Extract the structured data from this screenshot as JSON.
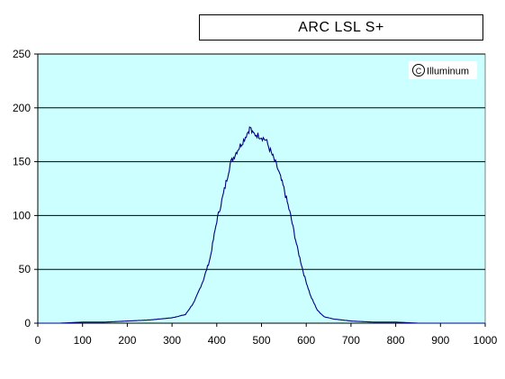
{
  "chart_data": {
    "type": "line",
    "title": "ARC LSL S+",
    "annotation": "Illuminum",
    "annotation_symbol": "©",
    "xlabel": "",
    "ylabel": "",
    "xlim": [
      0,
      1000
    ],
    "ylim": [
      0,
      250
    ],
    "x_ticks": [
      0,
      100,
      200,
      300,
      400,
      500,
      600,
      700,
      800,
      900,
      1000
    ],
    "y_ticks": [
      0,
      50,
      100,
      150,
      200,
      250
    ],
    "grid": "horizontal",
    "legend": "none",
    "plot_background": "#ccffff",
    "line_color": "#000080",
    "series": [
      {
        "x": [
          0,
          50,
          100,
          150,
          200,
          250,
          300,
          330,
          350,
          370,
          385,
          400,
          415,
          430,
          445,
          460,
          470,
          475,
          480,
          490,
          500,
          510,
          520,
          535,
          550,
          565,
          580,
          595,
          610,
          625,
          640,
          660,
          680,
          700,
          750,
          800,
          850,
          900,
          950,
          1000
        ],
        "y": [
          0,
          0,
          1,
          1,
          2,
          3,
          5,
          8,
          20,
          40,
          60,
          95,
          120,
          148,
          160,
          170,
          178,
          182,
          176,
          175,
          173,
          170,
          160,
          145,
          125,
          100,
          70,
          45,
          25,
          12,
          6,
          4,
          3,
          2,
          1,
          1,
          0,
          0,
          0,
          0
        ]
      }
    ]
  }
}
